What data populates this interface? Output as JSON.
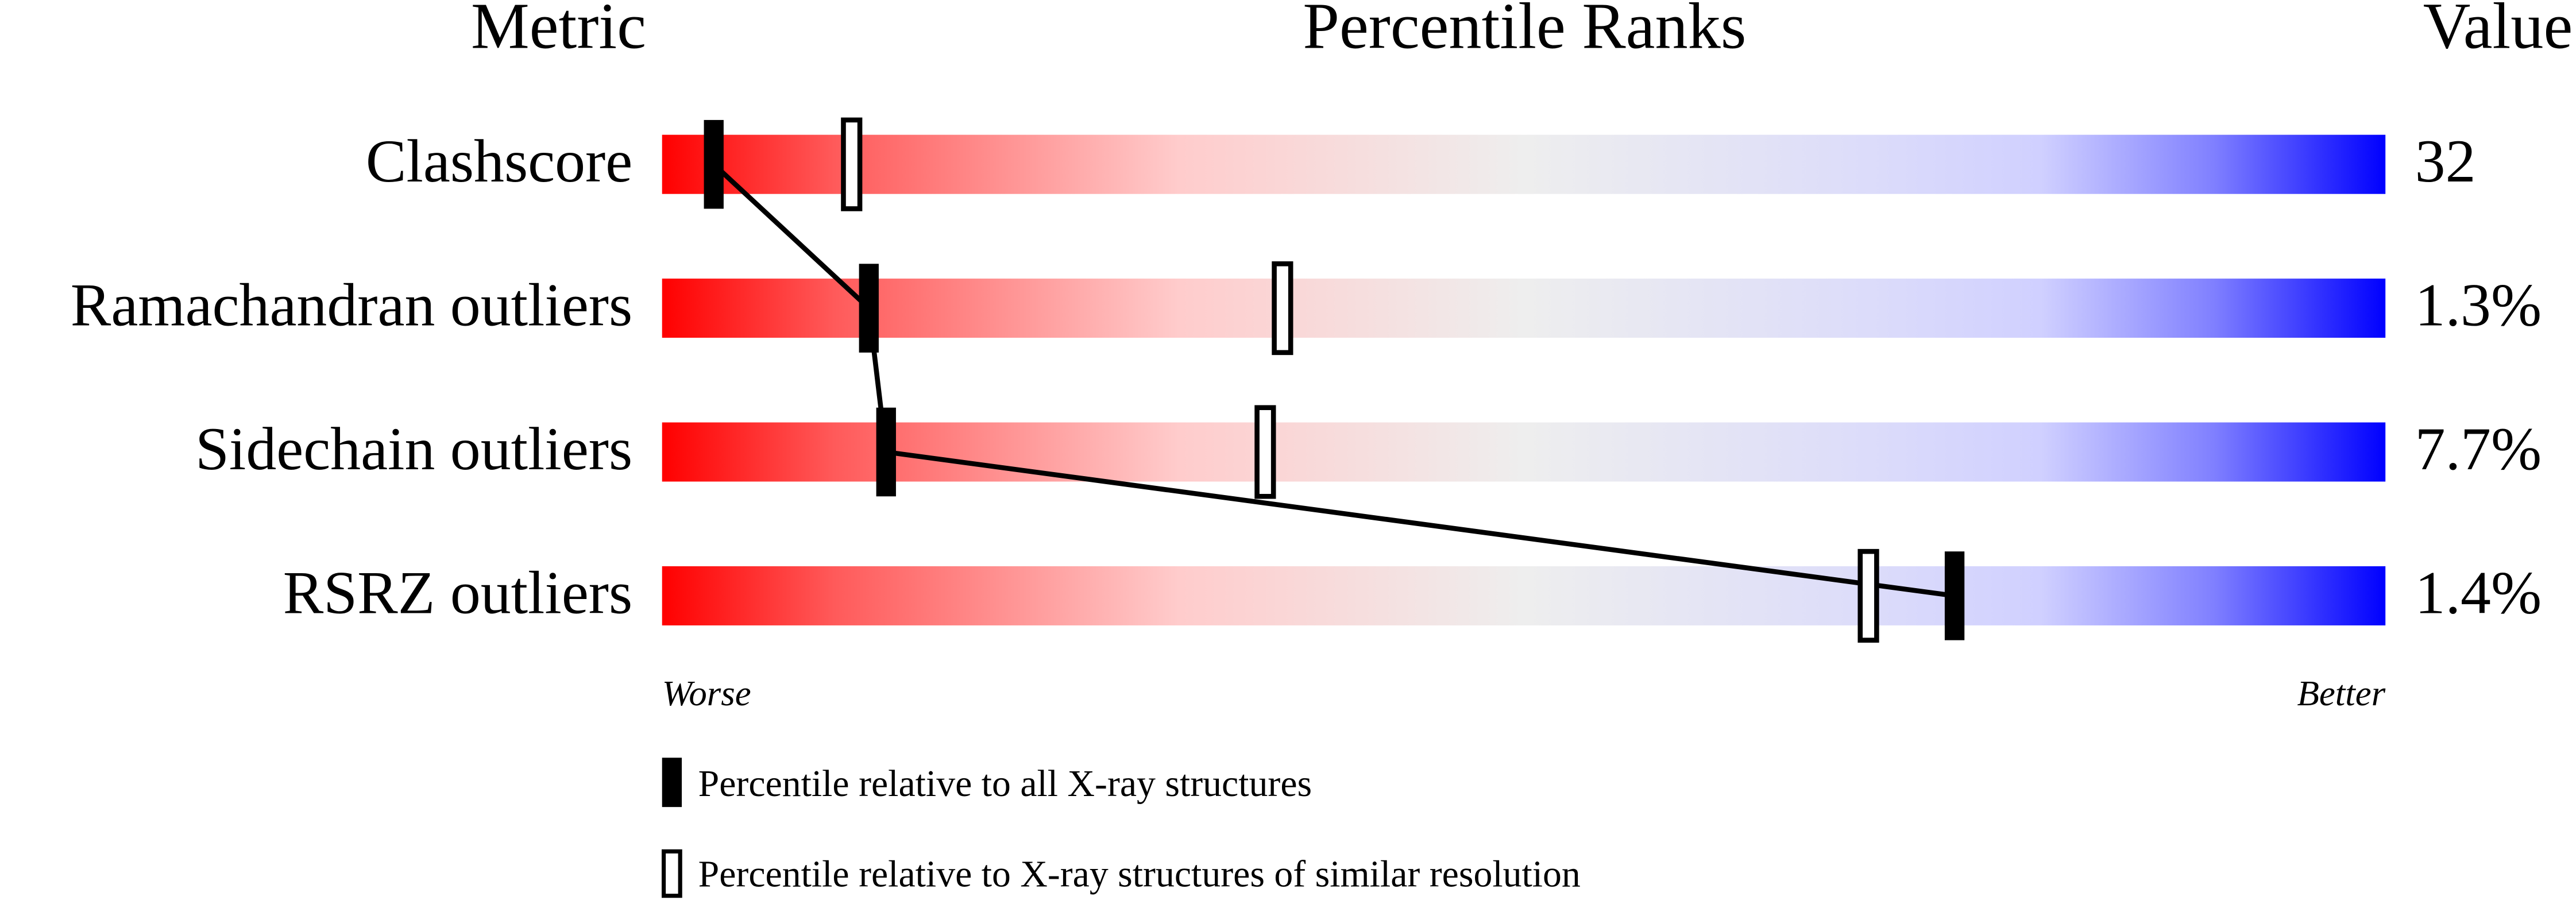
{
  "chart_data": {
    "type": "percentile-slider",
    "column_headers": [
      "Metric",
      "Percentile Ranks",
      "Value"
    ],
    "categories": [
      "Clashscore",
      "Ramachandran outliers",
      "Sidechain outliers",
      "RSRZ outliers"
    ],
    "metric_values": [
      "32",
      "1.3%",
      "7.7%",
      "1.4%"
    ],
    "series": [
      {
        "name": "Percentile relative to all X-ray structures",
        "color": "#000000",
        "marker": "filled",
        "values": [
          3,
          12,
          13,
          75
        ]
      },
      {
        "name": "Percentile relative to X-ray structures of similar resolution",
        "color": "#000000",
        "marker": "open",
        "values": [
          11,
          36,
          35,
          70
        ]
      }
    ],
    "xlim": [
      0,
      100
    ],
    "axis_end_labels": [
      "Worse",
      "Better"
    ]
  }
}
